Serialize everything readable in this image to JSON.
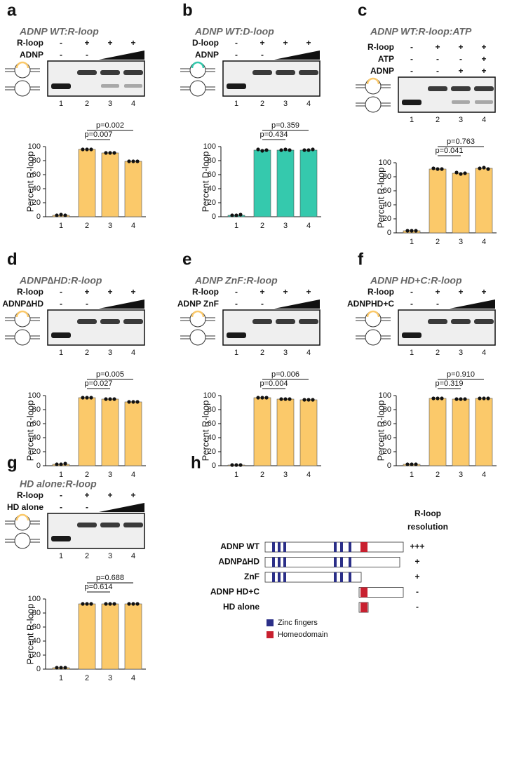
{
  "chart_data": [
    {
      "type": "bar",
      "panel": "a",
      "title": "ADNP WT:R-loop",
      "color": "#fbc96a",
      "conditions": [
        {
          "label": "R-loop",
          "signs": [
            "-",
            "+",
            "+",
            "+"
          ]
        },
        {
          "label": "ADNP",
          "signs": [
            "-",
            "-"
          ]
        }
      ],
      "ylabel": "Percent R-loop",
      "categories": [
        "1",
        "2",
        "3",
        "4"
      ],
      "values": [
        2,
        96,
        91,
        79
      ],
      "points": [
        [
          2,
          3,
          2
        ],
        [
          96,
          96,
          96
        ],
        [
          91,
          91,
          91
        ],
        [
          79,
          79,
          79
        ]
      ],
      "comparisons": [
        {
          "text": "p=0.007",
          "between": [
            "2",
            "3"
          ]
        },
        {
          "text": "p=0.002",
          "between": [
            "2",
            "4"
          ]
        }
      ],
      "ylim": [
        0,
        100
      ],
      "yticks": [
        0,
        20,
        40,
        60,
        80,
        100
      ]
    },
    {
      "type": "bar",
      "panel": "b",
      "title": "ADNP WT:D-loop",
      "color": "#35c9ad",
      "conditions": [
        {
          "label": "D-loop",
          "signs": [
            "-",
            "+",
            "+",
            "+"
          ]
        },
        {
          "label": "ADNP",
          "signs": [
            "-",
            "-"
          ]
        }
      ],
      "ylabel": "Percent D-loop",
      "categories": [
        "1",
        "2",
        "3",
        "4"
      ],
      "values": [
        2,
        95,
        95,
        95
      ],
      "points": [
        [
          2,
          2,
          3
        ],
        [
          96,
          94,
          95
        ],
        [
          95,
          96,
          95
        ],
        [
          95,
          95,
          96
        ]
      ],
      "comparisons": [
        {
          "text": "p=0.434",
          "between": [
            "2",
            "3"
          ]
        },
        {
          "text": "p=0.359",
          "between": [
            "2",
            "4"
          ]
        }
      ],
      "ylim": [
        0,
        100
      ],
      "yticks": [
        0,
        20,
        40,
        60,
        80,
        100
      ]
    },
    {
      "type": "bar",
      "panel": "c",
      "title": "ADNP WT:R-loop:ATP",
      "color": "#fbc96a",
      "conditions": [
        {
          "label": "R-loop",
          "signs": [
            "-",
            "+",
            "+",
            "+"
          ]
        },
        {
          "label": "ATP",
          "signs": [
            "-",
            "-",
            "-",
            "+"
          ]
        },
        {
          "label": "ADNP",
          "signs": [
            "-",
            "-",
            "+",
            "+"
          ]
        }
      ],
      "ylabel": "Percent R-loop",
      "categories": [
        "1",
        "2",
        "3",
        "4"
      ],
      "values": [
        3,
        91,
        85,
        92
      ],
      "points": [
        [
          3,
          3,
          3
        ],
        [
          92,
          91,
          91
        ],
        [
          86,
          84,
          85
        ],
        [
          92,
          93,
          91
        ]
      ],
      "comparisons": [
        {
          "text": "p=0.041",
          "between": [
            "2",
            "3"
          ]
        },
        {
          "text": "p=0.763",
          "between": [
            "2",
            "4"
          ]
        }
      ],
      "ylim": [
        0,
        100
      ],
      "yticks": [
        0,
        20,
        40,
        60,
        80,
        100
      ]
    },
    {
      "type": "bar",
      "panel": "d",
      "title": "ADNP∆HD:R-loop",
      "color": "#fbc96a",
      "conditions": [
        {
          "label": "R-loop",
          "signs": [
            "-",
            "+",
            "+",
            "+"
          ]
        },
        {
          "label": "ADNP∆HD",
          "signs": [
            "-",
            "-"
          ]
        }
      ],
      "ylabel": "Percent R-loop",
      "categories": [
        "1",
        "2",
        "3",
        "4"
      ],
      "values": [
        2,
        97,
        95,
        91
      ],
      "points": [
        [
          2,
          2,
          3
        ],
        [
          97,
          97,
          97
        ],
        [
          95,
          95,
          95
        ],
        [
          91,
          91,
          91
        ]
      ],
      "comparisons": [
        {
          "text": "p=0.027",
          "between": [
            "2",
            "3"
          ]
        },
        {
          "text": "p=0.005",
          "between": [
            "2",
            "4"
          ]
        }
      ],
      "ylim": [
        0,
        100
      ],
      "yticks": [
        0,
        20,
        40,
        60,
        80,
        100
      ]
    },
    {
      "type": "bar",
      "panel": "e",
      "title": "ADNP ZnF:R-loop",
      "color": "#fbc96a",
      "conditions": [
        {
          "label": "R-loop",
          "signs": [
            "-",
            "+",
            "+",
            "+"
          ]
        },
        {
          "label": "ADNP ZnF",
          "signs": [
            "-",
            "-"
          ]
        }
      ],
      "ylabel": "Percent R-loop",
      "categories": [
        "1",
        "2",
        "3",
        "4"
      ],
      "values": [
        1,
        97,
        95,
        94
      ],
      "points": [
        [
          1,
          1,
          1
        ],
        [
          97,
          97,
          97
        ],
        [
          95,
          95,
          95
        ],
        [
          94,
          94,
          94
        ]
      ],
      "comparisons": [
        {
          "text": "p=0.004",
          "between": [
            "2",
            "3"
          ]
        },
        {
          "text": "p=0.006",
          "between": [
            "2",
            "4"
          ]
        }
      ],
      "ylim": [
        0,
        100
      ],
      "yticks": [
        0,
        20,
        40,
        60,
        80,
        100
      ]
    },
    {
      "type": "bar",
      "panel": "f",
      "title": "ADNP HD+C:R-loop",
      "color": "#fbc96a",
      "conditions": [
        {
          "label": "R-loop",
          "signs": [
            "-",
            "+",
            "+",
            "+"
          ]
        },
        {
          "label": "ADNPHD+C",
          "signs": [
            "-",
            "-"
          ]
        }
      ],
      "ylabel": "Percent R-loop",
      "categories": [
        "1",
        "2",
        "3",
        "4"
      ],
      "values": [
        2,
        96,
        95,
        96
      ],
      "points": [
        [
          2,
          2,
          2
        ],
        [
          96,
          96,
          96
        ],
        [
          95,
          95,
          95
        ],
        [
          96,
          96,
          96
        ]
      ],
      "comparisons": [
        {
          "text": "p=0.319",
          "between": [
            "2",
            "3"
          ]
        },
        {
          "text": "p=0.910",
          "between": [
            "2",
            "4"
          ]
        }
      ],
      "ylim": [
        0,
        100
      ],
      "yticks": [
        0,
        20,
        40,
        60,
        80,
        100
      ]
    },
    {
      "type": "bar",
      "panel": "g",
      "title": "HD alone:R-loop",
      "color": "#fbc96a",
      "conditions": [
        {
          "label": "R-loop",
          "signs": [
            "-",
            "+",
            "+",
            "+"
          ]
        },
        {
          "label": "HD alone",
          "signs": [
            "-",
            "-"
          ]
        }
      ],
      "ylabel": "Percent R-loop",
      "categories": [
        "1",
        "2",
        "3",
        "4"
      ],
      "values": [
        2,
        93,
        93,
        93
      ],
      "points": [
        [
          2,
          2,
          2
        ],
        [
          93,
          93,
          93
        ],
        [
          93,
          93,
          93
        ],
        [
          93,
          93,
          93
        ]
      ],
      "comparisons": [
        {
          "text": "p=0.614",
          "between": [
            "2",
            "3"
          ]
        },
        {
          "text": "p=0.688",
          "between": [
            "2",
            "4"
          ]
        }
      ],
      "ylim": [
        0,
        100
      ],
      "yticks": [
        0,
        20,
        40,
        60,
        80,
        100
      ]
    }
  ],
  "domain_diagram": {
    "panel": "h",
    "header": [
      "R-loop",
      "resolution"
    ],
    "constructs": [
      {
        "name": "ADNP WT",
        "resolution": "+++"
      },
      {
        "name": "ADNP∆HD",
        "resolution": "+"
      },
      {
        "name": "ZnF",
        "resolution": "+"
      },
      {
        "name": "ADNP HD+C",
        "resolution": "-"
      },
      {
        "name": "HD alone",
        "resolution": "-"
      }
    ],
    "legend": [
      {
        "label": "Zinc fingers",
        "color": "#2b2f88"
      },
      {
        "label": "Homeodomain",
        "color": "#c8202f"
      }
    ]
  }
}
